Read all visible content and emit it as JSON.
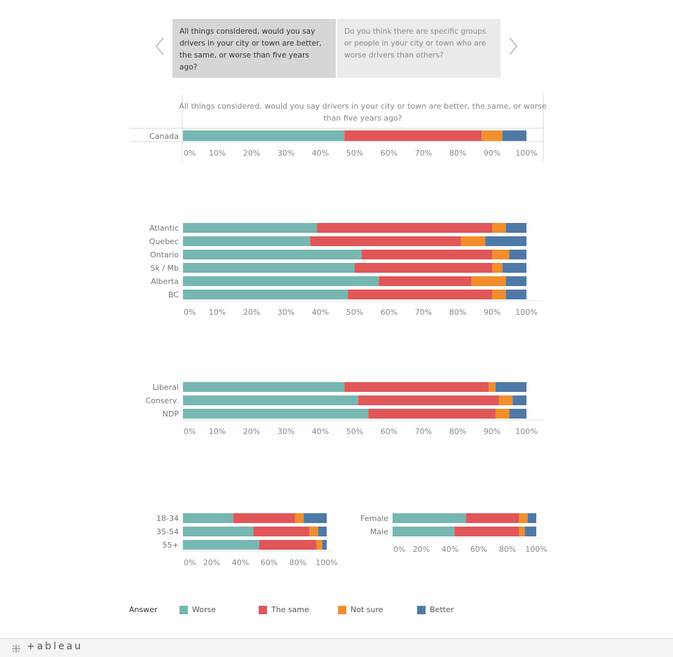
{
  "nav": {
    "tile_a": "All things considered, would you say drivers in your city or town are better, the same, or worse than five years ago?",
    "tile_b": "Do you think there are specific groups or people in your city or town who are worse drivers than others?"
  },
  "legend": {
    "title": "Answer",
    "items": [
      {
        "label": "Worse",
        "color": "#76b7b2"
      },
      {
        "label": "The same",
        "color": "#e15759"
      },
      {
        "label": "Not sure",
        "color": "#f28e2b"
      },
      {
        "label": "Better",
        "color": "#4e79a7"
      }
    ]
  },
  "footer": {
    "brand": "+ableau",
    "icon": "tableau-logo-icon"
  },
  "chart_data": [
    {
      "type": "bar",
      "orientation": "horizontal",
      "stacked": true,
      "title": "All things considered, would you say drivers in your city or town are better, the same, or worse than five years ago?",
      "categories": [
        "Canada"
      ],
      "series": [
        {
          "name": "Worse",
          "values": [
            47
          ]
        },
        {
          "name": "The same",
          "values": [
            40
          ]
        },
        {
          "name": "Not sure",
          "values": [
            6
          ]
        },
        {
          "name": "Better",
          "values": [
            7
          ]
        }
      ],
      "xlim": [
        0,
        100
      ],
      "x_ticks": [
        "0%",
        "10%",
        "20%",
        "30%",
        "40%",
        "50%",
        "60%",
        "70%",
        "80%",
        "90%",
        "100%"
      ]
    },
    {
      "type": "bar",
      "orientation": "horizontal",
      "stacked": true,
      "categories": [
        "Atlantic",
        "Quebec",
        "Ontario",
        "Sk / Mb",
        "Alberta",
        "BC"
      ],
      "series": [
        {
          "name": "Worse",
          "values": [
            39,
            37,
            52,
            50,
            57,
            48
          ]
        },
        {
          "name": "The same",
          "values": [
            51,
            44,
            38,
            40,
            27,
            42
          ]
        },
        {
          "name": "Not sure",
          "values": [
            4,
            7,
            5,
            3,
            10,
            4
          ]
        },
        {
          "name": "Better",
          "values": [
            6,
            12,
            5,
            7,
            6,
            6
          ]
        }
      ],
      "xlim": [
        0,
        100
      ],
      "x_ticks": [
        "0%",
        "10%",
        "20%",
        "30%",
        "40%",
        "50%",
        "60%",
        "70%",
        "80%",
        "90%",
        "100%"
      ]
    },
    {
      "type": "bar",
      "orientation": "horizontal",
      "stacked": true,
      "categories": [
        "Liberal",
        "Conserv.",
        "NDP"
      ],
      "series": [
        {
          "name": "Worse",
          "values": [
            47,
            51,
            54
          ]
        },
        {
          "name": "The same",
          "values": [
            42,
            41,
            37
          ]
        },
        {
          "name": "Not sure",
          "values": [
            2,
            4,
            4
          ]
        },
        {
          "name": "Better",
          "values": [
            9,
            4,
            5
          ]
        }
      ],
      "xlim": [
        0,
        100
      ],
      "x_ticks": [
        "0%",
        "10%",
        "20%",
        "30%",
        "40%",
        "50%",
        "60%",
        "70%",
        "80%",
        "90%",
        "100%"
      ]
    },
    {
      "type": "bar",
      "orientation": "horizontal",
      "stacked": true,
      "categories": [
        "18-34",
        "35-54",
        "55+"
      ],
      "series": [
        {
          "name": "Worse",
          "values": [
            35,
            49,
            53
          ]
        },
        {
          "name": "The same",
          "values": [
            43,
            39,
            40
          ]
        },
        {
          "name": "Not sure",
          "values": [
            6,
            6,
            4
          ]
        },
        {
          "name": "Better",
          "values": [
            16,
            6,
            3
          ]
        }
      ],
      "xlim": [
        0,
        100
      ],
      "x_ticks": [
        "0%",
        "20%",
        "40%",
        "60%",
        "80%",
        "100%"
      ]
    },
    {
      "type": "bar",
      "orientation": "horizontal",
      "stacked": true,
      "categories": [
        "Female",
        "Male"
      ],
      "series": [
        {
          "name": "Worse",
          "values": [
            51,
            43
          ]
        },
        {
          "name": "The same",
          "values": [
            37,
            45
          ]
        },
        {
          "name": "Not sure",
          "values": [
            6,
            4
          ]
        },
        {
          "name": "Better",
          "values": [
            6,
            8
          ]
        }
      ],
      "xlim": [
        0,
        100
      ],
      "x_ticks": [
        "0%",
        "20%",
        "40%",
        "60%",
        "80%",
        "100%"
      ]
    }
  ]
}
